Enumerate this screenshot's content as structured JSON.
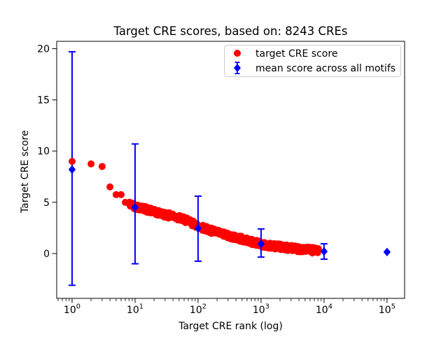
{
  "figure": {
    "title": "Target CRE scores, based on: 8243 CREs",
    "xlabel": "Target CRE rank (log)",
    "ylabel": "Target CRE score"
  },
  "legend": {
    "position": "upper-right",
    "items": [
      {
        "label": "target CRE score",
        "marker": "red-circle-icon",
        "color": "#ff0000"
      },
      {
        "label": "mean score across all motifs",
        "marker": "blue-diamond-errorbar-icon",
        "color": "#0000ff"
      }
    ]
  },
  "colors": {
    "red": "#ff0000",
    "blue": "#0000ff",
    "axis": "#000000",
    "background": "#ffffff",
    "legend_border": "#cccccc"
  },
  "chart_data": {
    "type": "scatter",
    "title": "Target CRE scores, based on: 8243 CREs",
    "xlabel": "Target CRE rank (log)",
    "ylabel": "Target CRE score",
    "x_scale": "log",
    "y_scale": "linear",
    "xlim": [
      0.57,
      190000
    ],
    "ylim": [
      -4.38,
      20.72
    ],
    "x_tick_exponents": [
      0,
      1,
      2,
      3,
      4,
      5
    ],
    "y_ticks": [
      0,
      5,
      10,
      15,
      20
    ],
    "grid": false,
    "legend_position": "upper right",
    "series": [
      {
        "name": "target CRE score",
        "marker": "circle",
        "color": "#ff0000",
        "head_points": [
          [
            1,
            9.0
          ],
          [
            2,
            8.75
          ],
          [
            3,
            8.5
          ],
          [
            4,
            6.5
          ],
          [
            5,
            5.75
          ],
          [
            6,
            5.75
          ],
          [
            7,
            5.0
          ]
        ],
        "band": {
          "x_start": 8,
          "x_end": 8243,
          "spread": 0.3,
          "sample_x": [
            8,
            10,
            13,
            20,
            30,
            50,
            70,
            100,
            150,
            200,
            300,
            500,
            700,
            1000,
            1500,
            2000,
            3000,
            5000,
            7000,
            8243
          ],
          "sample_y": [
            4.85,
            4.6,
            4.45,
            4.05,
            3.8,
            3.5,
            3.15,
            2.7,
            2.3,
            2.05,
            1.75,
            1.4,
            1.15,
            0.9,
            0.75,
            0.65,
            0.52,
            0.4,
            0.3,
            0.25
          ]
        }
      },
      {
        "name": "mean score across all motifs",
        "marker": "diamond",
        "color": "#0000ff",
        "x": [
          1,
          10,
          100,
          1000,
          10000,
          100000
        ],
        "mean": [
          8.2,
          4.5,
          2.45,
          0.95,
          0.2,
          0.15
        ],
        "err_high": [
          19.7,
          10.7,
          5.6,
          2.4,
          0.95,
          0.15
        ],
        "err_low": [
          -3.1,
          -1.0,
          -0.75,
          -0.35,
          -0.55,
          0.15
        ]
      }
    ]
  }
}
